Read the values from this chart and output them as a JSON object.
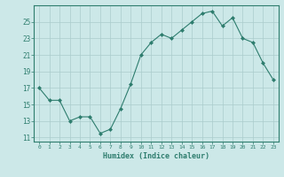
{
  "x": [
    0,
    1,
    2,
    3,
    4,
    5,
    6,
    7,
    8,
    9,
    10,
    11,
    12,
    13,
    14,
    15,
    16,
    17,
    18,
    19,
    20,
    21,
    22,
    23
  ],
  "y": [
    17,
    15.5,
    15.5,
    13,
    13.5,
    13.5,
    11.5,
    12,
    14.5,
    17.5,
    21,
    22.5,
    23.5,
    23,
    24,
    25,
    26,
    26.3,
    24.5,
    25.5,
    23,
    22.5,
    20,
    18
  ],
  "xlabel": "Humidex (Indice chaleur)",
  "xlim": [
    -0.5,
    23.5
  ],
  "ylim": [
    10.5,
    27
  ],
  "yticks": [
    11,
    13,
    15,
    17,
    19,
    21,
    23,
    25
  ],
  "xticks": [
    0,
    1,
    2,
    3,
    4,
    5,
    6,
    7,
    8,
    9,
    10,
    11,
    12,
    13,
    14,
    15,
    16,
    17,
    18,
    19,
    20,
    21,
    22,
    23
  ],
  "line_color": "#2e7d6e",
  "marker_color": "#2e7d6e",
  "bg_color": "#cce8e8",
  "grid_color": "#aacccc",
  "tick_color": "#2e7d6e",
  "label_color": "#2e7d6e"
}
